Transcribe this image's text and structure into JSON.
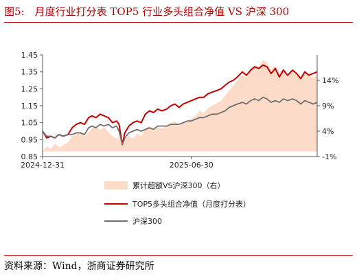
{
  "figure": {
    "title": "图5:　月度行业打分表 TOP5 行业多头组合净值 VS 沪深 300",
    "source": "资料来源：Wind，浙商证券研究所"
  },
  "colors": {
    "accent": "#b40000",
    "area": "#fcdcc8",
    "top5": "#c00000",
    "hs300": "#707070"
  },
  "chart_data": {
    "type": "line",
    "x_ticks": [
      "2024-12-31",
      "2025-06-30"
    ],
    "x_range": [
      "2024-12-31",
      "2025-11-30"
    ],
    "y_left": {
      "range": [
        0.85,
        1.45
      ],
      "ticks": [
        "0.85",
        "0.95",
        "1.05",
        "1.15",
        "1.25",
        "1.35",
        "1.45"
      ]
    },
    "y_right": {
      "range": [
        -0.01,
        0.19
      ],
      "ticks": [
        "-1%",
        "4%",
        "9%",
        "14%"
      ]
    },
    "grid": false,
    "legend_position": "bottom",
    "x": [
      "2024-12-31",
      "2025-01-05",
      "2025-01-10",
      "2025-01-15",
      "2025-01-20",
      "2025-01-25",
      "2025-01-31",
      "2025-02-05",
      "2025-02-10",
      "2025-02-15",
      "2025-02-20",
      "2025-02-25",
      "2025-03-01",
      "2025-03-06",
      "2025-03-11",
      "2025-03-16",
      "2025-03-21",
      "2025-03-26",
      "2025-03-31",
      "2025-04-03",
      "2025-04-07",
      "2025-04-10",
      "2025-04-15",
      "2025-04-20",
      "2025-04-25",
      "2025-04-30",
      "2025-05-05",
      "2025-05-10",
      "2025-05-15",
      "2025-05-20",
      "2025-05-25",
      "2025-05-31",
      "2025-06-05",
      "2025-06-10",
      "2025-06-15",
      "2025-06-20",
      "2025-06-25",
      "2025-06-30",
      "2025-07-05",
      "2025-07-10",
      "2025-07-15",
      "2025-07-20",
      "2025-07-25",
      "2025-07-31",
      "2025-08-05",
      "2025-08-10",
      "2025-08-15",
      "2025-08-20",
      "2025-08-25",
      "2025-08-31",
      "2025-09-05",
      "2025-09-10",
      "2025-09-15",
      "2025-09-20",
      "2025-09-25",
      "2025-09-30",
      "2025-10-05",
      "2025-10-10",
      "2025-10-15",
      "2025-10-20",
      "2025-10-25",
      "2025-10-31",
      "2025-11-05",
      "2025-11-10",
      "2025-11-15",
      "2025-11-20",
      "2025-11-25",
      "2025-11-30"
    ],
    "series": [
      {
        "name": "累计超额VS沪深300（右）",
        "type": "area",
        "axis": "right",
        "values": [
          0.0,
          0.01,
          0.005,
          0.015,
          0.008,
          0.012,
          0.018,
          0.03,
          0.035,
          0.04,
          0.03,
          0.038,
          0.045,
          0.05,
          0.042,
          0.048,
          0.038,
          0.03,
          0.025,
          0.028,
          0.015,
          0.025,
          0.03,
          0.025,
          0.035,
          0.03,
          0.045,
          0.05,
          0.04,
          0.048,
          0.045,
          0.05,
          0.055,
          0.06,
          0.05,
          0.058,
          0.06,
          0.065,
          0.07,
          0.08,
          0.075,
          0.085,
          0.09,
          0.095,
          0.1,
          0.11,
          0.12,
          0.13,
          0.14,
          0.15,
          0.145,
          0.16,
          0.17,
          0.165,
          0.18,
          0.175,
          0.16,
          0.17,
          0.155,
          0.165,
          0.15,
          0.16,
          0.15,
          0.145,
          0.155,
          0.15,
          0.145,
          0.15
        ]
      },
      {
        "name": "TOP5多头组合净值（月度打分表）",
        "type": "line",
        "axis": "left",
        "values": [
          1.0,
          0.96,
          0.97,
          0.96,
          0.98,
          0.97,
          0.98,
          1.02,
          1.04,
          1.05,
          1.04,
          1.08,
          1.09,
          1.08,
          1.1,
          1.09,
          1.08,
          1.05,
          1.06,
          1.04,
          0.92,
          0.99,
          1.03,
          1.05,
          1.06,
          1.05,
          1.1,
          1.12,
          1.11,
          1.13,
          1.12,
          1.13,
          1.15,
          1.16,
          1.14,
          1.16,
          1.17,
          1.18,
          1.19,
          1.2,
          1.2,
          1.22,
          1.23,
          1.24,
          1.25,
          1.27,
          1.29,
          1.3,
          1.32,
          1.35,
          1.33,
          1.36,
          1.38,
          1.37,
          1.39,
          1.38,
          1.34,
          1.37,
          1.32,
          1.36,
          1.33,
          1.36,
          1.34,
          1.31,
          1.35,
          1.33,
          1.34,
          1.35
        ]
      },
      {
        "name": "沪深300",
        "type": "line",
        "axis": "left",
        "values": [
          1.0,
          0.97,
          0.97,
          0.96,
          0.98,
          0.97,
          0.98,
          0.98,
          0.99,
          0.99,
          0.98,
          1.02,
          1.03,
          1.02,
          1.04,
          1.03,
          1.04,
          1.02,
          1.03,
          1.0,
          0.92,
          0.96,
          0.99,
          1.0,
          1.01,
          1.0,
          1.01,
          1.02,
          1.01,
          1.03,
          1.03,
          1.03,
          1.04,
          1.04,
          1.04,
          1.05,
          1.06,
          1.06,
          1.07,
          1.08,
          1.08,
          1.09,
          1.1,
          1.1,
          1.11,
          1.12,
          1.14,
          1.15,
          1.16,
          1.17,
          1.16,
          1.18,
          1.19,
          1.18,
          1.2,
          1.19,
          1.17,
          1.18,
          1.17,
          1.19,
          1.18,
          1.19,
          1.18,
          1.16,
          1.18,
          1.17,
          1.16,
          1.17
        ]
      }
    ]
  }
}
